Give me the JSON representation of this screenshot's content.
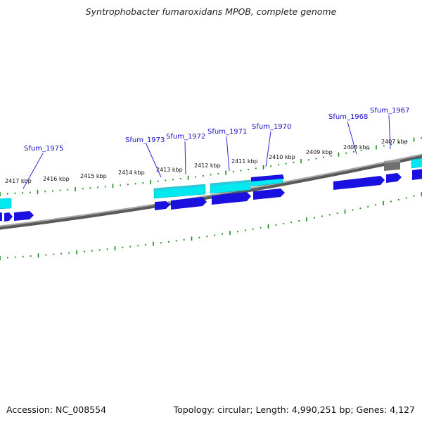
{
  "title": "Syntrophobacter fumaroxidans MPOB, complete genome",
  "footer": {
    "accession": "Accession: NC_008554",
    "summary": "Topology: circular; Length: 4,990,251 bp; Genes: 4,127"
  },
  "colors": {
    "background": "#ffffff",
    "backbone": "#7a7a7a",
    "tick": "#1a8a1a",
    "gene_blue": "#1a10e0",
    "gene_cyan": "#00e8f0",
    "gene_gray": "#707070",
    "label_blue": "#1a10c8",
    "leader": "#2a2ad8",
    "scale_label": "#111111"
  },
  "scale_labels": [
    "2417 kbp",
    "2416 kbp",
    "2415 kbp",
    "2414 kbp",
    "2413 kbp",
    "2412 kbp",
    "2411 kbp",
    "2410 kbp",
    "2409 kbp",
    "2408 kbp",
    "2407 kbp"
  ],
  "gene_labels": [
    "Sfum_1975",
    "Sfum_1973",
    "Sfum_1972",
    "Sfum_1971",
    "Sfum_1970",
    "Sfum_1968",
    "Sfum_1967"
  ]
}
